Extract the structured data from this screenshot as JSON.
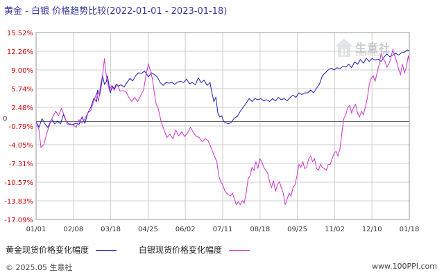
{
  "title": "黄金 - 白银  价格趋势比较(2022-01-01 - 2023-01-18)",
  "legend": {
    "gold_label": "黄金现货价格变化幅度",
    "silver_label": "白银现货价格变化幅度"
  },
  "footer": {
    "left": "© 2025.05 生意社",
    "right": "www.100PPI.com"
  },
  "watermark": {
    "name": "生意社",
    "sub": "100PPI.COM"
  },
  "colors": {
    "gold": "#1a1ab4",
    "silver": "#cc33cc",
    "axis_text": "#cc0000",
    "grid": "#cccccc",
    "zero_line": "#666666"
  },
  "chart_data": {
    "type": "line",
    "x_ticks": [
      "01/01",
      "02/08",
      "03/18",
      "04/25",
      "06/02",
      "07/11",
      "08/18",
      "09/25",
      "11/02",
      "12/10",
      "01/18"
    ],
    "y_ticks": [
      "15.52%",
      "12.26%",
      "9.00%",
      "5.74%",
      "2.48%",
      "-0.79%",
      "-4.05%",
      "-7.31%",
      "-10.57%",
      "-13.83%",
      "-17.09%"
    ],
    "y_zero_label": "0",
    "ylim": [
      -17.09,
      15.52
    ],
    "x_range_days": [
      0,
      382
    ],
    "series": [
      {
        "name": "黄金现货价格变化幅度",
        "color": "#1a1ab4",
        "points": [
          [
            0,
            0
          ],
          [
            3,
            -1
          ],
          [
            6,
            0.5
          ],
          [
            9,
            -0.4
          ],
          [
            12,
            -1
          ],
          [
            16,
            0.4
          ],
          [
            19,
            -0.4
          ],
          [
            22,
            0.1
          ],
          [
            25,
            -0.4
          ],
          [
            28,
            1.2
          ],
          [
            31,
            0
          ],
          [
            34,
            -0.5
          ],
          [
            38,
            -0.5
          ],
          [
            41,
            -0.3
          ],
          [
            44,
            -0.5
          ],
          [
            47,
            0.8
          ],
          [
            50,
            -0.3
          ],
          [
            53,
            1.5
          ],
          [
            56,
            2.5
          ],
          [
            59,
            4
          ],
          [
            62,
            3.5
          ],
          [
            63,
            5.5
          ],
          [
            65,
            4.5
          ],
          [
            67,
            6.5
          ],
          [
            68,
            8
          ],
          [
            70,
            6.5
          ],
          [
            72,
            7
          ],
          [
            73,
            8
          ],
          [
            74,
            7
          ],
          [
            76,
            5
          ],
          [
            78,
            6.2
          ],
          [
            80,
            5.7
          ],
          [
            82,
            6.5
          ],
          [
            84,
            6.2
          ],
          [
            87,
            6.4
          ],
          [
            90,
            6
          ],
          [
            93,
            6.8
          ],
          [
            96,
            7.5
          ],
          [
            99,
            7.1
          ],
          [
            102,
            8
          ],
          [
            105,
            8.5
          ],
          [
            108,
            8.4
          ],
          [
            111,
            8.8
          ],
          [
            113,
            8.3
          ],
          [
            115,
            7.8
          ],
          [
            118,
            8.5
          ],
          [
            121,
            8.2
          ],
          [
            124,
            7.8
          ],
          [
            127,
            6.8
          ],
          [
            130,
            6.3
          ],
          [
            133,
            6.8
          ],
          [
            136,
            6.7
          ],
          [
            139,
            6.8
          ],
          [
            142,
            6.5
          ],
          [
            145,
            6.9
          ],
          [
            148,
            7
          ],
          [
            151,
            6.8
          ],
          [
            154,
            7.4
          ],
          [
            157,
            6.6
          ],
          [
            160,
            6.8
          ],
          [
            163,
            6.4
          ],
          [
            166,
            7.6
          ],
          [
            169,
            6.8
          ],
          [
            172,
            7.2
          ],
          [
            175,
            6.3
          ],
          [
            178,
            6.8
          ],
          [
            180,
            5
          ],
          [
            182,
            3.5
          ],
          [
            184,
            4.2
          ],
          [
            186,
            1.5
          ],
          [
            188,
            0.8
          ],
          [
            190,
            1
          ],
          [
            192,
            0
          ],
          [
            194,
            -0.2
          ],
          [
            197,
            -0.4
          ],
          [
            200,
            -0.1
          ],
          [
            203,
            0.6
          ],
          [
            206,
            0.9
          ],
          [
            209,
            1.8
          ],
          [
            212,
            2.5
          ],
          [
            215,
            3.2
          ],
          [
            218,
            4
          ],
          [
            221,
            3.5
          ],
          [
            224,
            4
          ],
          [
            227,
            3.8
          ],
          [
            230,
            4
          ],
          [
            233,
            3.6
          ],
          [
            236,
            3.8
          ],
          [
            239,
            3.5
          ],
          [
            242,
            4
          ],
          [
            245,
            3.6
          ],
          [
            248,
            4.2
          ],
          [
            251,
            3.8
          ],
          [
            254,
            4
          ],
          [
            257,
            3.6
          ],
          [
            260,
            4.2
          ],
          [
            263,
            4.6
          ],
          [
            266,
            4.2
          ],
          [
            269,
            5
          ],
          [
            272,
            4.7
          ],
          [
            275,
            5
          ],
          [
            278,
            5
          ],
          [
            281,
            5.5
          ],
          [
            284,
            5
          ],
          [
            287,
            5.8
          ],
          [
            290,
            6.5
          ],
          [
            293,
            8
          ],
          [
            296,
            8.5
          ],
          [
            299,
            9
          ],
          [
            302,
            9.3
          ],
          [
            305,
            9
          ],
          [
            308,
            9.4
          ],
          [
            311,
            9.2
          ],
          [
            314,
            9.6
          ],
          [
            317,
            9.5
          ],
          [
            320,
            10
          ],
          [
            323,
            9.4
          ],
          [
            326,
            10.4
          ],
          [
            329,
            10
          ],
          [
            332,
            10.8
          ],
          [
            335,
            10.2
          ],
          [
            338,
            11
          ],
          [
            341,
            10.5
          ],
          [
            344,
            11
          ],
          [
            347,
            10.7
          ],
          [
            350,
            10.9
          ],
          [
            353,
            10.5
          ],
          [
            356,
            11.2
          ],
          [
            359,
            11.8
          ],
          [
            362,
            11.3
          ],
          [
            365,
            11.6
          ],
          [
            368,
            11.9
          ],
          [
            371,
            11.6
          ],
          [
            374,
            12
          ],
          [
            377,
            12.1
          ],
          [
            380,
            12.5
          ],
          [
            382,
            12.3
          ]
        ]
      },
      {
        "name": "白银现货价格变化幅度",
        "color": "#cc33cc",
        "points": [
          [
            0,
            0
          ],
          [
            3,
            -1.5
          ],
          [
            5,
            -4.5
          ],
          [
            8,
            -4
          ],
          [
            11,
            -2
          ],
          [
            14,
            -0.5
          ],
          [
            17,
            0.8
          ],
          [
            20,
            1.8
          ],
          [
            23,
            1
          ],
          [
            26,
            2.3
          ],
          [
            29,
            1
          ],
          [
            32,
            -0.5
          ],
          [
            35,
            -0.4
          ],
          [
            38,
            -0.6
          ],
          [
            41,
            -1
          ],
          [
            44,
            0.3
          ],
          [
            47,
            -0.3
          ],
          [
            50,
            0.5
          ],
          [
            53,
            1.5
          ],
          [
            56,
            1.9
          ],
          [
            59,
            3.5
          ],
          [
            62,
            5
          ],
          [
            64,
            3.5
          ],
          [
            66,
            6.5
          ],
          [
            68,
            8
          ],
          [
            70,
            11
          ],
          [
            71,
            9
          ],
          [
            73,
            7
          ],
          [
            75,
            5.5
          ],
          [
            77,
            6.2
          ],
          [
            80,
            5.5
          ],
          [
            83,
            6.5
          ],
          [
            86,
            5.3
          ],
          [
            89,
            5.4
          ],
          [
            92,
            5.2
          ],
          [
            95,
            4.2
          ],
          [
            98,
            3.5
          ],
          [
            101,
            4.2
          ],
          [
            104,
            3.5
          ],
          [
            107,
            4.5
          ],
          [
            110,
            5.5
          ],
          [
            113,
            8.5
          ],
          [
            115,
            10
          ],
          [
            117,
            8.8
          ],
          [
            119,
            7.5
          ],
          [
            121,
            5
          ],
          [
            123,
            3
          ],
          [
            125,
            2.3
          ],
          [
            128,
            0
          ],
          [
            131,
            -1.5
          ],
          [
            134,
            -2.8
          ],
          [
            137,
            -2.2
          ],
          [
            140,
            -3
          ],
          [
            143,
            -1.5
          ],
          [
            146,
            -2.5
          ],
          [
            149,
            -1.8
          ],
          [
            152,
            -2.6
          ],
          [
            155,
            -2
          ],
          [
            158,
            -1
          ],
          [
            161,
            -1.9
          ],
          [
            164,
            -2.6
          ],
          [
            167,
            -2.8
          ],
          [
            170,
            -3.5
          ],
          [
            173,
            -3
          ],
          [
            176,
            -3.3
          ],
          [
            179,
            -4.5
          ],
          [
            182,
            -5.8
          ],
          [
            185,
            -7
          ],
          [
            187,
            -9.5
          ],
          [
            189,
            -10.5
          ],
          [
            191,
            -11
          ],
          [
            193,
            -12
          ],
          [
            195,
            -12.5
          ],
          [
            197,
            -12.8
          ],
          [
            199,
            -13
          ],
          [
            201,
            -12.5
          ],
          [
            203,
            -13.5
          ],
          [
            205,
            -14.5
          ],
          [
            207,
            -14
          ],
          [
            209,
            -14.5
          ],
          [
            211,
            -13.8
          ],
          [
            213,
            -14.2
          ],
          [
            215,
            -12.5
          ],
          [
            217,
            -10
          ],
          [
            219,
            -9.5
          ],
          [
            221,
            -8
          ],
          [
            223,
            -8.5
          ],
          [
            225,
            -7
          ],
          [
            227,
            -8.2
          ],
          [
            229,
            -6.5
          ],
          [
            231,
            -7
          ],
          [
            233,
            -8
          ],
          [
            235,
            -8.5
          ],
          [
            237,
            -9
          ],
          [
            239,
            -10.5
          ],
          [
            241,
            -11.5
          ],
          [
            243,
            -10.3
          ],
          [
            245,
            -12.2
          ],
          [
            247,
            -11
          ],
          [
            249,
            -10.5
          ],
          [
            251,
            -11.5
          ],
          [
            253,
            -12.5
          ],
          [
            255,
            -14.5
          ],
          [
            257,
            -13.5
          ],
          [
            259,
            -12.5
          ],
          [
            261,
            -13
          ],
          [
            263,
            -11.5
          ],
          [
            265,
            -11
          ],
          [
            267,
            -9.5
          ],
          [
            269,
            -7.5
          ],
          [
            271,
            -8
          ],
          [
            273,
            -7
          ],
          [
            275,
            -8.2
          ],
          [
            277,
            -8
          ],
          [
            279,
            -6.5
          ],
          [
            281,
            -6
          ],
          [
            283,
            -7
          ],
          [
            285,
            -6.5
          ],
          [
            287,
            -8.2
          ],
          [
            289,
            -8.5
          ],
          [
            291,
            -7.5
          ],
          [
            293,
            -8
          ],
          [
            295,
            -8.2
          ],
          [
            297,
            -8.5
          ],
          [
            299,
            -7.5
          ],
          [
            301,
            -7.5
          ],
          [
            303,
            -6.5
          ],
          [
            305,
            -5.5
          ],
          [
            307,
            -5.2
          ],
          [
            309,
            -6
          ],
          [
            311,
            -4.8
          ],
          [
            313,
            -2
          ],
          [
            315,
            0.5
          ],
          [
            317,
            1.2
          ],
          [
            319,
            2.5
          ],
          [
            321,
            2.8
          ],
          [
            323,
            1.5
          ],
          [
            325,
            2.5
          ],
          [
            327,
            3
          ],
          [
            329,
            1.5
          ],
          [
            331,
            0.8
          ],
          [
            333,
            1.8
          ],
          [
            335,
            1.2
          ],
          [
            337,
            2.5
          ],
          [
            339,
            4
          ],
          [
            341,
            6.5
          ],
          [
            343,
            7.5
          ],
          [
            345,
            8
          ],
          [
            347,
            7
          ],
          [
            349,
            8.5
          ],
          [
            351,
            9.8
          ],
          [
            353,
            11.8
          ],
          [
            355,
            11
          ],
          [
            357,
            10.5
          ],
          [
            359,
            9.5
          ],
          [
            361,
            10
          ],
          [
            363,
            11
          ],
          [
            365,
            12.5
          ],
          [
            367,
            11.5
          ],
          [
            369,
            10.5
          ],
          [
            371,
            9.2
          ],
          [
            373,
            8.2
          ],
          [
            375,
            10
          ],
          [
            377,
            8.5
          ],
          [
            379,
            9.5
          ],
          [
            381,
            11.5
          ],
          [
            382,
            10.5
          ]
        ]
      }
    ]
  }
}
